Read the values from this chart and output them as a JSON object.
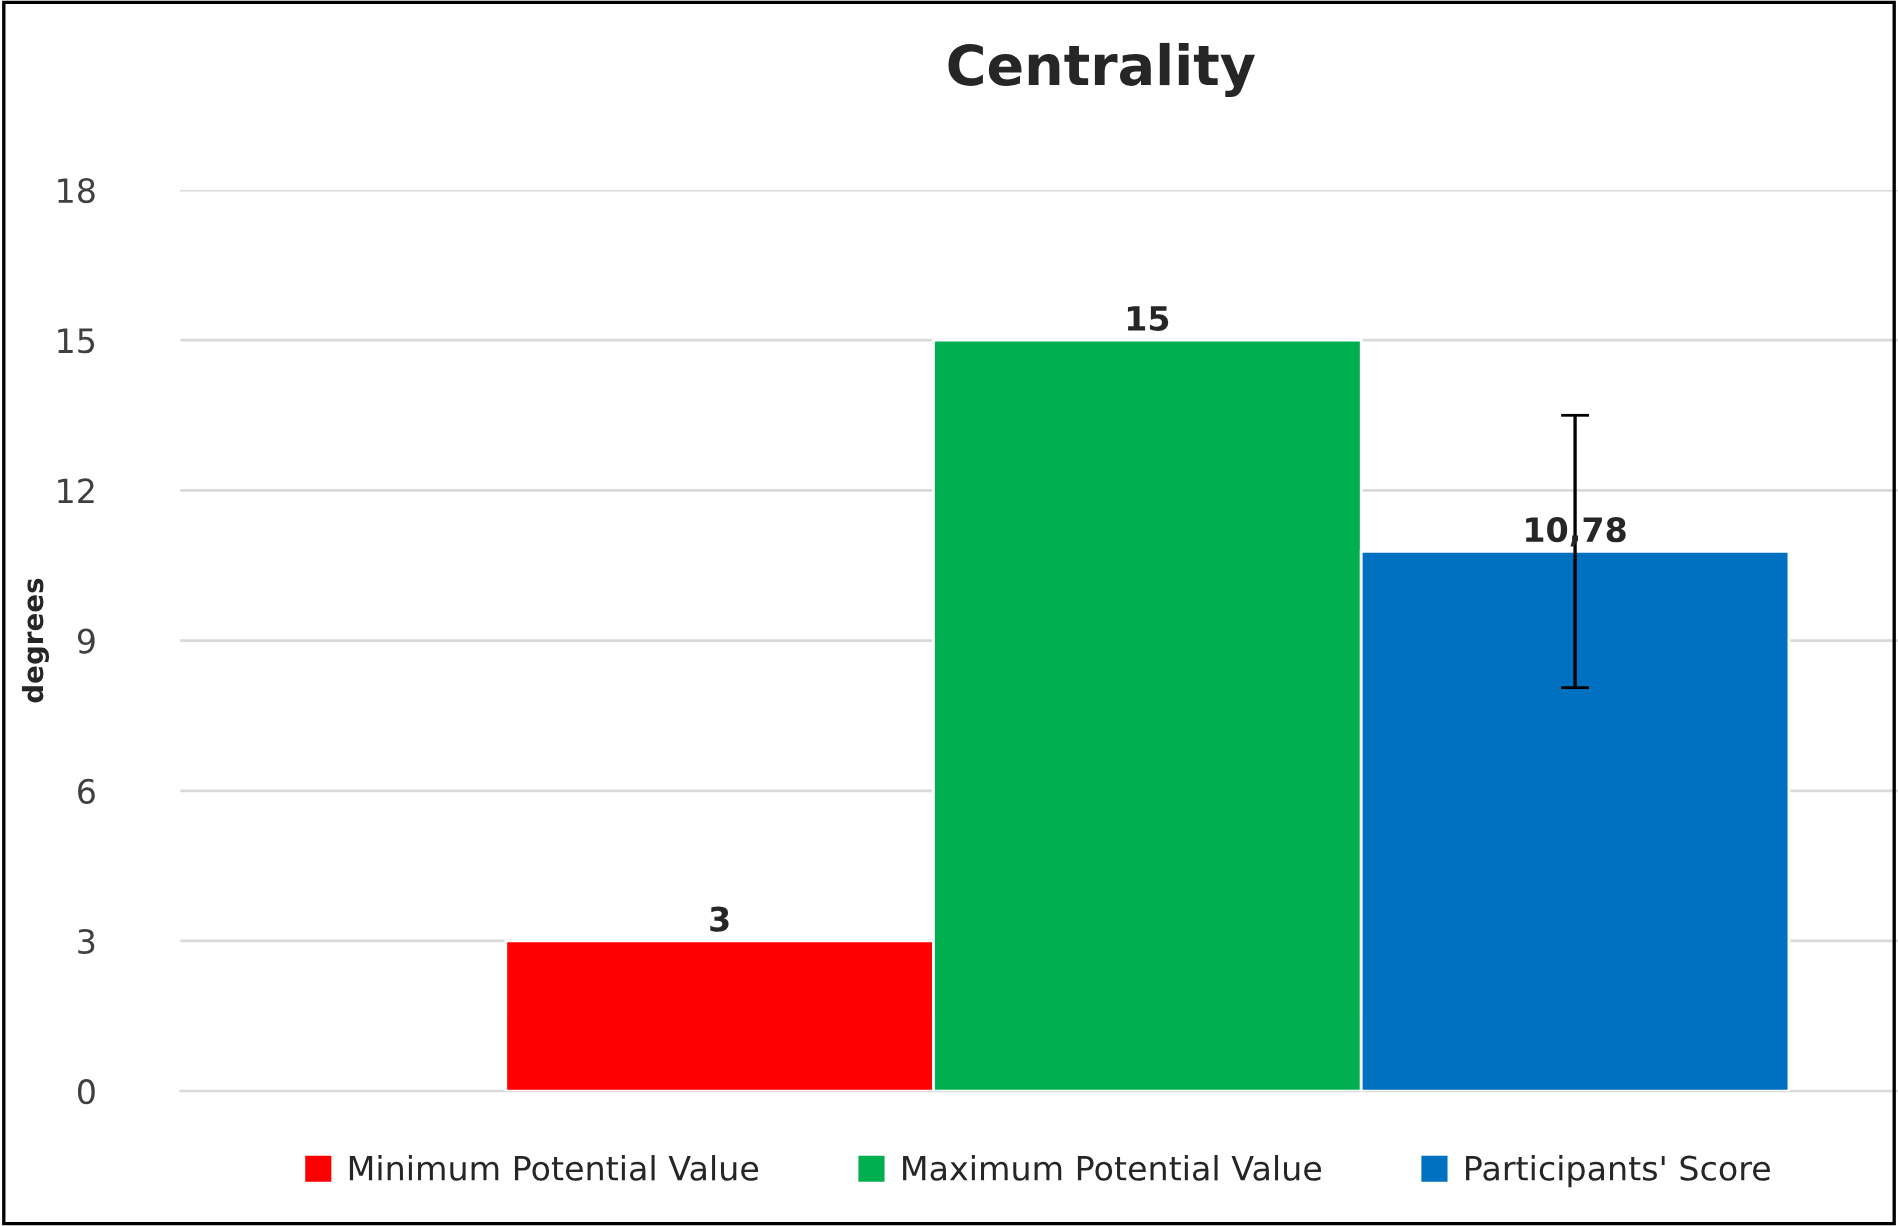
{
  "chart_data": {
    "type": "bar",
    "title": "Centrality",
    "ylabel": "degrees",
    "categories": [
      null
    ],
    "series": [
      {
        "name": "Minimum Potential Value",
        "color": "#ff0000",
        "values": [
          3
        ],
        "value_labels": [
          "3"
        ]
      },
      {
        "name": "Maximum Potential Value",
        "color": "#00b050",
        "values": [
          15
        ],
        "value_labels": [
          "15"
        ]
      },
      {
        "name": "Participants' Score",
        "color": "#0070c0",
        "values": [
          10.78
        ],
        "value_labels": [
          "10,78"
        ],
        "errors": [
          2.72
        ]
      }
    ],
    "ylim": [
      0,
      18
    ],
    "yticks": [
      0,
      3,
      6,
      9,
      12,
      15,
      18
    ],
    "grid": "y",
    "legend": "bottom"
  }
}
